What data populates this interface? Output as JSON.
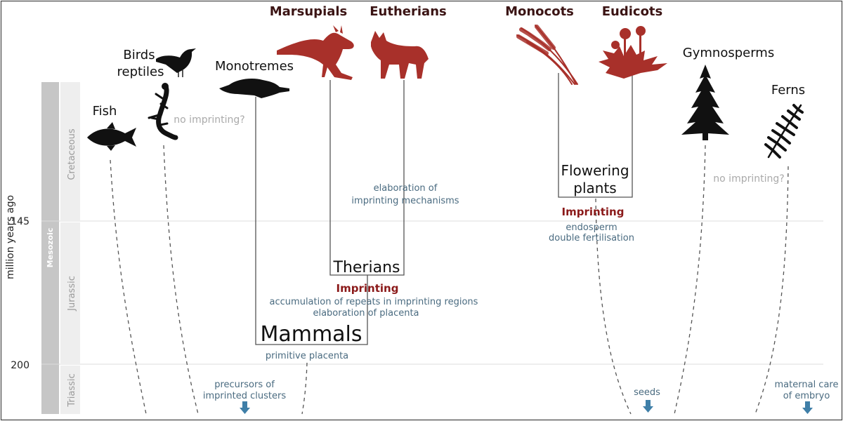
{
  "axis": {
    "label": "million years ago",
    "ticks": [
      {
        "id": "t145",
        "label": "145"
      },
      {
        "id": "t200",
        "label": "200"
      }
    ],
    "era": "Mesozoic",
    "periods": {
      "cretaceous": "Cretaceous",
      "jurassic": "Jurassic",
      "triassic": "Triassic"
    }
  },
  "taxa": {
    "fish": "Fish",
    "birds_l1": "Birds",
    "birds_l2": "reptiles",
    "monotremes": "Monotremes",
    "marsupials": "Marsupials",
    "eutherians": "Eutherians",
    "monocots": "Monocots",
    "eudicots": "Eudicots",
    "gymnosperms": "Gymnosperms",
    "ferns": "Ferns"
  },
  "clades": {
    "mammals": "Mammals",
    "therians": "Therians",
    "flowering_l1": "Flowering",
    "flowering_l2": "plants"
  },
  "notes": {
    "no_imprinting_1": "no imprinting?",
    "no_imprinting_2": "no imprinting?",
    "elab_l1": "elaboration of",
    "elab_l2": "imprinting mechanisms",
    "imprinting_plants": "Imprinting",
    "endosperm": "endosperm",
    "double_fert": "double fertilisation",
    "imprinting_therians": "Imprinting",
    "repeats": "accumulation of repeats in imprinting regions",
    "placenta_elab": "elaboration of placenta",
    "primitive_placenta": "primitive placenta",
    "precursors_l1": "precursors of",
    "precursors_l2": "imprinted clusters",
    "seeds": "seeds",
    "maternal_l1": "maternal care",
    "maternal_l2": "of embryo"
  },
  "colors": {
    "imprinting_red": "#8b1a1a",
    "silhouette_red": "#a8302a",
    "note_blue": "#4a6b80",
    "arrow_blue": "#3f7fa8",
    "heading_dark": "#3b1414",
    "grey_note": "#aaaaaa"
  },
  "icons": {
    "fish": "tuna-silhouette",
    "bird": "blackbird-silhouette",
    "reptile": "lizard-silhouette",
    "monotreme": "platypus-silhouette",
    "marsupial": "kangaroo-silhouette",
    "eutherian": "dog-silhouette",
    "monocot": "wheat-silhouette",
    "eudicot": "dandelion-silhouette",
    "gymnosperm": "conifer-silhouette",
    "fern": "fern-frond-silhouette"
  }
}
